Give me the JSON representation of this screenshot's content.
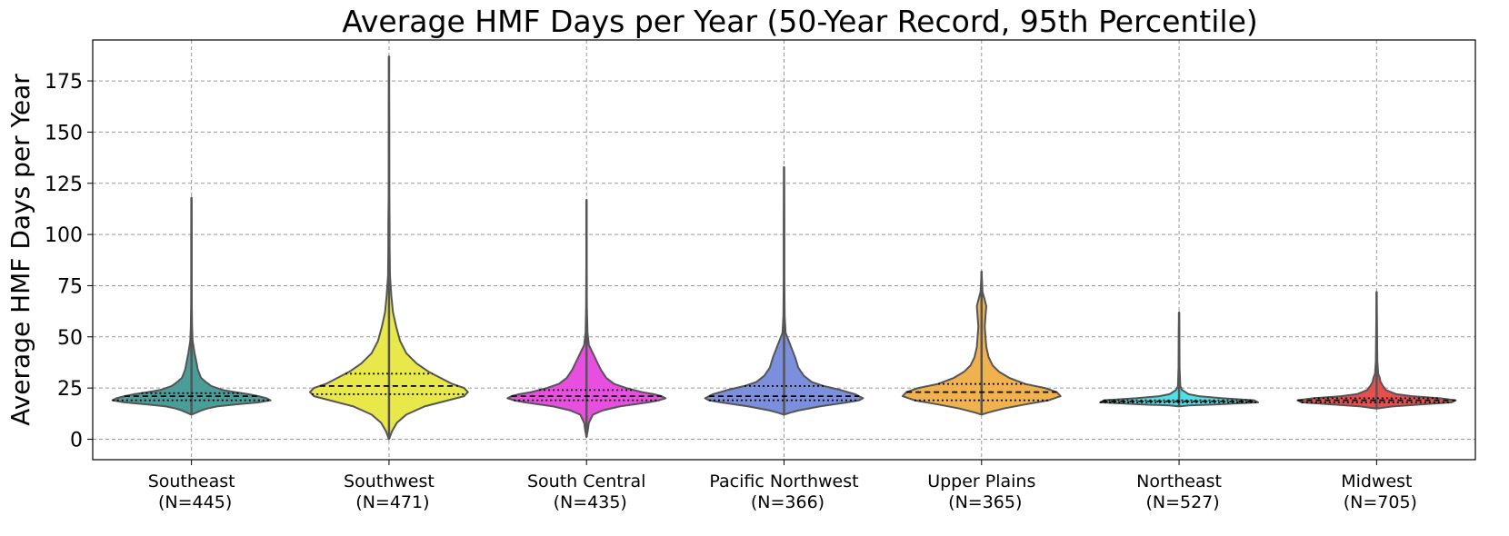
{
  "chart_data": {
    "type": "violin",
    "title": "Average HMF Days per Year (50-Year Record, 95th Percentile)",
    "ylabel": "Average HMF Days per Year",
    "xlabel": "",
    "ylim": [
      -10,
      195
    ],
    "yticks": [
      0,
      25,
      50,
      75,
      100,
      125,
      150,
      175
    ],
    "grid": true,
    "categories": [
      {
        "name": "Southeast",
        "n_label": "(N=445)",
        "color": "#4a9e9a",
        "min": 12,
        "max": 118,
        "q1": 19,
        "median": 21,
        "q3": 22.5,
        "profile": [
          [
            12,
            0.0
          ],
          [
            13,
            0.06
          ],
          [
            14,
            0.12
          ],
          [
            15,
            0.2
          ],
          [
            16,
            0.32
          ],
          [
            17,
            0.55
          ],
          [
            18,
            0.85
          ],
          [
            19,
            1.0
          ],
          [
            20,
            0.95
          ],
          [
            21,
            0.85
          ],
          [
            22,
            0.72
          ],
          [
            23,
            0.55
          ],
          [
            24,
            0.4
          ],
          [
            26,
            0.25
          ],
          [
            28,
            0.18
          ],
          [
            30,
            0.12
          ],
          [
            34,
            0.08
          ],
          [
            38,
            0.06
          ],
          [
            42,
            0.04
          ],
          [
            48,
            0.015
          ],
          [
            55,
            0.008
          ],
          [
            65,
            0.004
          ],
          [
            80,
            0.003
          ],
          [
            100,
            0.003
          ],
          [
            118,
            0.0
          ]
        ]
      },
      {
        "name": "Southwest",
        "n_label": "(N=471)",
        "color": "#e8e84a",
        "min": 0,
        "max": 187,
        "q1": 22,
        "median": 26,
        "q3": 32,
        "profile": [
          [
            0,
            0.0
          ],
          [
            4,
            0.04
          ],
          [
            8,
            0.1
          ],
          [
            12,
            0.22
          ],
          [
            16,
            0.45
          ],
          [
            19,
            0.75
          ],
          [
            21,
            0.95
          ],
          [
            23,
            1.0
          ],
          [
            25,
            0.95
          ],
          [
            27,
            0.8
          ],
          [
            30,
            0.65
          ],
          [
            33,
            0.5
          ],
          [
            37,
            0.35
          ],
          [
            42,
            0.22
          ],
          [
            48,
            0.14
          ],
          [
            55,
            0.09
          ],
          [
            62,
            0.05
          ],
          [
            70,
            0.03
          ],
          [
            80,
            0.012
          ],
          [
            95,
            0.008
          ],
          [
            105,
            0.008
          ],
          [
            120,
            0.004
          ],
          [
            150,
            0.003
          ],
          [
            187,
            0.0
          ]
        ]
      },
      {
        "name": "South Central",
        "n_label": "(N=435)",
        "color": "#e84ee0",
        "min": 1,
        "max": 117,
        "q1": 19,
        "median": 21,
        "q3": 24,
        "profile": [
          [
            1,
            0.0
          ],
          [
            4,
            0.015
          ],
          [
            8,
            0.03
          ],
          [
            12,
            0.08
          ],
          [
            14,
            0.2
          ],
          [
            16,
            0.42
          ],
          [
            18,
            0.78
          ],
          [
            19,
            0.92
          ],
          [
            20,
            1.0
          ],
          [
            21,
            0.95
          ],
          [
            22,
            0.85
          ],
          [
            23,
            0.7
          ],
          [
            25,
            0.5
          ],
          [
            27,
            0.35
          ],
          [
            30,
            0.25
          ],
          [
            34,
            0.18
          ],
          [
            38,
            0.13
          ],
          [
            42,
            0.08
          ],
          [
            46,
            0.03
          ],
          [
            52,
            0.012
          ],
          [
            65,
            0.005
          ],
          [
            85,
            0.003
          ],
          [
            117,
            0.0
          ]
        ]
      },
      {
        "name": "Pacific Northwest",
        "n_label": "(N=366)",
        "color": "#7b8fdc",
        "min": 12,
        "max": 133,
        "q1": 19,
        "median": 21,
        "q3": 26,
        "profile": [
          [
            12,
            0.0
          ],
          [
            13,
            0.08
          ],
          [
            14,
            0.18
          ],
          [
            16,
            0.45
          ],
          [
            18,
            0.8
          ],
          [
            19,
            0.95
          ],
          [
            20,
            1.0
          ],
          [
            22,
            0.9
          ],
          [
            24,
            0.72
          ],
          [
            26,
            0.5
          ],
          [
            28,
            0.35
          ],
          [
            31,
            0.25
          ],
          [
            35,
            0.18
          ],
          [
            40,
            0.14
          ],
          [
            44,
            0.1
          ],
          [
            48,
            0.06
          ],
          [
            52,
            0.02
          ],
          [
            60,
            0.008
          ],
          [
            80,
            0.004
          ],
          [
            105,
            0.003
          ],
          [
            133,
            0.0
          ]
        ]
      },
      {
        "name": "Upper Plains",
        "n_label": "(N=365)",
        "color": "#efb24e",
        "min": 12,
        "max": 82,
        "q1": 19,
        "median": 23,
        "q3": 27,
        "profile": [
          [
            12,
            0.0
          ],
          [
            13,
            0.08
          ],
          [
            15,
            0.28
          ],
          [
            17,
            0.55
          ],
          [
            19,
            0.85
          ],
          [
            21,
            1.0
          ],
          [
            23,
            0.95
          ],
          [
            25,
            0.8
          ],
          [
            27,
            0.55
          ],
          [
            30,
            0.35
          ],
          [
            33,
            0.22
          ],
          [
            36,
            0.14
          ],
          [
            40,
            0.09
          ],
          [
            45,
            0.06
          ],
          [
            50,
            0.05
          ],
          [
            55,
            0.04
          ],
          [
            60,
            0.05
          ],
          [
            65,
            0.06
          ],
          [
            68,
            0.04
          ],
          [
            72,
            0.012
          ],
          [
            82,
            0.0
          ]
        ]
      },
      {
        "name": "Northeast",
        "n_label": "(N=527)",
        "color": "#4ee0e8",
        "min": 16,
        "max": 62,
        "q1": 18,
        "median": 18.5,
        "q3": 19,
        "profile": [
          [
            16,
            0.0
          ],
          [
            16.5,
            0.12
          ],
          [
            17,
            0.45
          ],
          [
            18,
            1.0
          ],
          [
            19,
            0.95
          ],
          [
            20,
            0.55
          ],
          [
            21,
            0.25
          ],
          [
            22,
            0.12
          ],
          [
            23,
            0.08
          ],
          [
            24,
            0.04
          ],
          [
            26,
            0.015
          ],
          [
            35,
            0.006
          ],
          [
            50,
            0.004
          ],
          [
            62,
            0.0
          ]
        ]
      },
      {
        "name": "Midwest",
        "n_label": "(N=705)",
        "color": "#e84e4e",
        "min": 15,
        "max": 72,
        "q1": 18,
        "median": 19,
        "q3": 20,
        "profile": [
          [
            15,
            0.0
          ],
          [
            16,
            0.2
          ],
          [
            17,
            0.55
          ],
          [
            18,
            0.95
          ],
          [
            19,
            1.0
          ],
          [
            20,
            0.8
          ],
          [
            21,
            0.45
          ],
          [
            22,
            0.25
          ],
          [
            24,
            0.12
          ],
          [
            26,
            0.08
          ],
          [
            28,
            0.05
          ],
          [
            30,
            0.04
          ],
          [
            32,
            0.02
          ],
          [
            38,
            0.01
          ],
          [
            50,
            0.006
          ],
          [
            72,
            0.0
          ]
        ]
      }
    ]
  }
}
